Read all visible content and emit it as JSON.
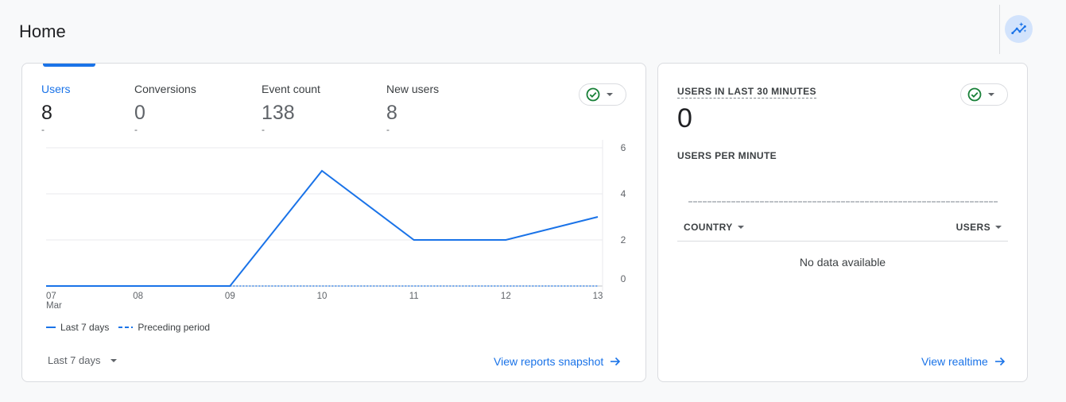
{
  "page": {
    "title": "Home"
  },
  "header": {
    "insights_icon": "insights-sparkle-icon"
  },
  "main_card": {
    "metrics": [
      {
        "label": "Users",
        "value": "8",
        "delta": "-",
        "active": true
      },
      {
        "label": "Conversions",
        "value": "0",
        "delta": "-",
        "active": false
      },
      {
        "label": "Event count",
        "value": "138",
        "delta": "-",
        "active": false
      },
      {
        "label": "New users",
        "value": "8",
        "delta": "-",
        "active": false
      }
    ],
    "legend": {
      "current": "Last 7 days",
      "previous": "Preceding period"
    },
    "date_range": "Last 7 days",
    "link": "View reports snapshot"
  },
  "chart_data": {
    "type": "line",
    "x": [
      "07",
      "08",
      "09",
      "10",
      "11",
      "12",
      "13"
    ],
    "x_sublabel": "Mar",
    "series": [
      {
        "name": "Last 7 days",
        "values": [
          0,
          0,
          0,
          5,
          2,
          2,
          3
        ],
        "style": "solid",
        "color": "#1a73e8"
      },
      {
        "name": "Preceding period",
        "values": [
          null,
          null,
          0,
          0,
          0,
          0,
          0
        ],
        "style": "dashed",
        "color": "#1a73e8"
      }
    ],
    "y_ticks": [
      0,
      2,
      4,
      6
    ],
    "ylim": [
      0,
      6
    ],
    "y_axis_side": "right",
    "grid": true,
    "legend_placement": "bottom-left"
  },
  "realtime_card": {
    "title": "USERS IN LAST 30 MINUTES",
    "value": "0",
    "subtitle": "USERS PER MINUTE",
    "table": {
      "col1": "COUNTRY",
      "col2": "USERS",
      "empty": "No data available"
    },
    "link": "View realtime"
  },
  "colors": {
    "accent": "#1a73e8",
    "success": "#188038"
  }
}
